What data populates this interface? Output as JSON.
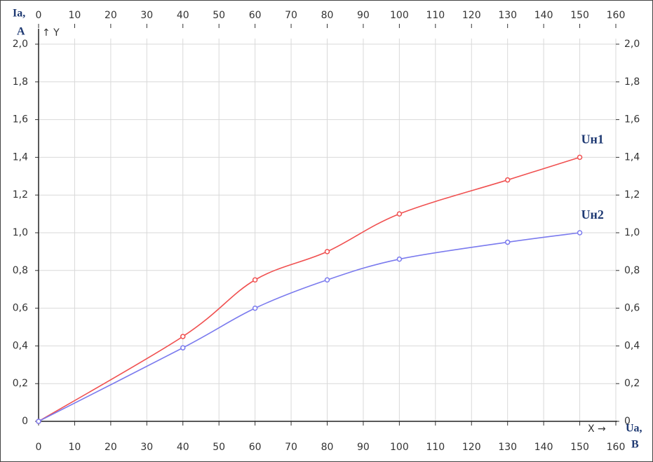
{
  "chart_data": {
    "type": "line",
    "y_unit": [
      "Ia,",
      "A"
    ],
    "y_axis_arrow": "↑ Y",
    "x_axis_arrow": "X →",
    "x_unit": [
      "Ua,",
      "B"
    ],
    "x": [
      0,
      40,
      60,
      80,
      100,
      130,
      150
    ],
    "series": [
      {
        "name": "Uн1",
        "color": "#f05050",
        "values": [
          0,
          0.45,
          0.75,
          0.9,
          1.1,
          1.28,
          1.4
        ]
      },
      {
        "name": "Uн2",
        "color": "#7a7aee",
        "values": [
          0,
          0.39,
          0.6,
          0.75,
          0.86,
          0.95,
          1.0
        ]
      }
    ],
    "xlim": [
      0,
      160
    ],
    "xticks": [
      0,
      10,
      20,
      30,
      40,
      50,
      60,
      70,
      80,
      90,
      100,
      110,
      120,
      130,
      140,
      150,
      160
    ],
    "x2lim": [
      0,
      160
    ],
    "x2ticks": [
      0,
      10,
      20,
      30,
      40,
      50,
      60,
      70,
      80,
      90,
      100,
      110,
      120,
      130,
      140,
      150,
      160
    ],
    "ylim": [
      0,
      2
    ],
    "yticks": [
      0,
      {
        "value": 0.2,
        "label": "0,2"
      },
      {
        "value": 0.4,
        "label": "0,4"
      },
      {
        "value": 0.6,
        "label": "0,6"
      },
      {
        "value": 0.8,
        "label": "0,8"
      },
      {
        "value": 1.0,
        "label": "1,0"
      },
      {
        "value": 1.2,
        "label": "1,2"
      },
      {
        "value": 1.4,
        "label": "1,4"
      },
      {
        "value": 1.6,
        "label": "1,6"
      },
      {
        "value": 1.8,
        "label": "1,8"
      },
      {
        "value": 2.0,
        "label": "2,0"
      }
    ],
    "y2lim": [
      0,
      2
    ],
    "y2ticks": [
      0,
      {
        "value": 0.2,
        "label": "0,2"
      },
      {
        "value": 0.4,
        "label": "0,4"
      },
      {
        "value": 0.6,
        "label": "0,6"
      },
      {
        "value": 0.8,
        "label": "0,8"
      },
      {
        "value": 1.0,
        "label": "1,0"
      },
      {
        "value": 1.2,
        "label": "1,2"
      },
      {
        "value": 1.4,
        "label": "1,4"
      },
      {
        "value": 1.6,
        "label": "1,6"
      },
      {
        "value": 1.8,
        "label": "1,8"
      },
      {
        "value": 2.0,
        "label": "2,0"
      }
    ],
    "grid": true
  }
}
